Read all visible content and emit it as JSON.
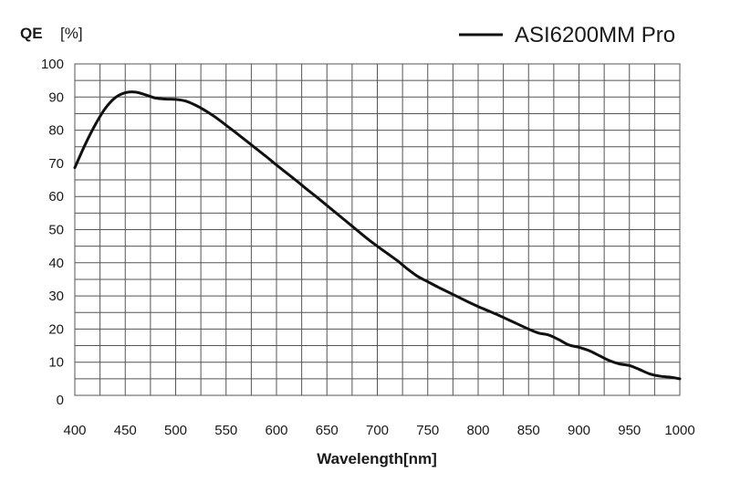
{
  "chart_data": {
    "type": "line",
    "title": "",
    "ylabel": {
      "name": "QE",
      "unit": "[%]"
    },
    "xlabel": "Wavelength[nm]",
    "xlim": [
      400,
      1000
    ],
    "ylim": [
      0,
      100
    ],
    "grid": true,
    "grid_minor_x_step": 25,
    "grid_minor_y_step": 5,
    "legend_position": "top-right",
    "x_ticks": [
      400,
      450,
      500,
      550,
      600,
      650,
      700,
      750,
      800,
      850,
      900,
      950,
      1000
    ],
    "y_ticks": [
      0,
      10,
      20,
      30,
      40,
      50,
      60,
      70,
      80,
      90,
      100
    ],
    "colors": {
      "line": "#111111",
      "grid": "#555555",
      "background": "#ffffff"
    },
    "series": [
      {
        "name": "ASI6200MM Pro",
        "x": [
          400,
          410,
          420,
          430,
          440,
          450,
          460,
          470,
          480,
          490,
          500,
          510,
          520,
          530,
          540,
          550,
          560,
          570,
          580,
          590,
          600,
          610,
          620,
          630,
          640,
          650,
          660,
          670,
          680,
          690,
          700,
          710,
          720,
          730,
          740,
          750,
          760,
          770,
          780,
          790,
          800,
          810,
          820,
          830,
          840,
          850,
          860,
          870,
          880,
          890,
          900,
          910,
          920,
          930,
          940,
          950,
          960,
          970,
          980,
          990,
          1000
        ],
        "values": [
          68.7,
          75.5,
          81.5,
          86.5,
          89.8,
          91.3,
          91.5,
          90.7,
          89.7,
          89.4,
          89.3,
          88.8,
          87.5,
          85.8,
          83.8,
          81.5,
          79.2,
          76.8,
          74.4,
          72.0,
          69.5,
          67.1,
          64.7,
          62.2,
          59.8,
          57.3,
          54.8,
          52.3,
          49.8,
          47.3,
          45.0,
          42.8,
          40.6,
          38.1,
          35.9,
          34.3,
          32.7,
          31.2,
          29.7,
          28.2,
          26.8,
          25.5,
          24.2,
          22.8,
          21.4,
          20.0,
          18.8,
          18.2,
          16.8,
          15.2,
          14.5,
          13.5,
          12.0,
          10.5,
          9.5,
          9.0,
          7.8,
          6.5,
          5.8,
          5.5,
          5.0
        ]
      }
    ]
  }
}
